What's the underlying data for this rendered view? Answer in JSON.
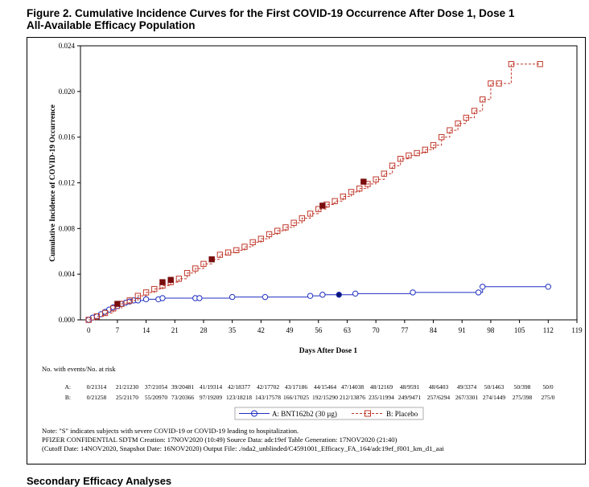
{
  "figure": {
    "title_line1": "Figure 2. Cumulative Incidence Curves for the First COVID-19 Occurrence After Dose 1, Dose 1",
    "title_line2": "All-Available Efficacy Population"
  },
  "chart_data": {
    "type": "line",
    "xlabel": "Days After Dose 1",
    "ylabel": "Cumulative Incidence of COVID-19 Occurrence",
    "xlim": [
      -2,
      119
    ],
    "ylim": [
      0,
      0.024
    ],
    "x_ticks": [
      "0",
      "7",
      "14",
      "21",
      "28",
      "35",
      "42",
      "49",
      "56",
      "63",
      "70",
      "77",
      "84",
      "91",
      "98",
      "105",
      "112",
      "119"
    ],
    "y_ticks": [
      "0.000",
      "0.004",
      "0.008",
      "0.012",
      "0.016",
      "0.020",
      "0.024"
    ],
    "series": [
      {
        "name": "A: BNT162b2 (30 µg)",
        "color": "#1f2fbf",
        "marker": "circle",
        "line_style": "solid",
        "points": [
          [
            0,
            0
          ],
          [
            1,
            0.0002
          ],
          [
            2,
            0.0003
          ],
          [
            3,
            0.0005
          ],
          [
            4,
            0.0007
          ],
          [
            5,
            0.0009
          ],
          [
            6,
            0.0011
          ],
          [
            7,
            0.0012
          ],
          [
            8,
            0.0014
          ],
          [
            9,
            0.0015
          ],
          [
            10,
            0.0016
          ],
          [
            11,
            0.0017
          ],
          [
            12,
            0.0017
          ],
          [
            14,
            0.0018
          ],
          [
            17,
            0.0018
          ],
          [
            18,
            0.0019
          ],
          [
            26,
            0.0019
          ],
          [
            27,
            0.0019
          ],
          [
            35,
            0.002
          ],
          [
            43,
            0.002
          ],
          [
            54,
            0.0021
          ],
          [
            57,
            0.0022
          ],
          [
            61,
            0.0022
          ],
          [
            65,
            0.0023
          ],
          [
            79,
            0.0024
          ],
          [
            95,
            0.0024
          ],
          [
            96,
            0.0029
          ],
          [
            112,
            0.0029
          ]
        ],
        "severe_points": [
          [
            61,
            0.0022
          ]
        ]
      },
      {
        "name": "B: Placebo",
        "color": "#c0392b",
        "marker": "square",
        "line_style": "dashed",
        "points": [
          [
            0,
            0
          ],
          [
            2,
            0.0003
          ],
          [
            4,
            0.0006
          ],
          [
            6,
            0.001
          ],
          [
            8,
            0.0014
          ],
          [
            10,
            0.0017
          ],
          [
            12,
            0.0021
          ],
          [
            14,
            0.0024
          ],
          [
            16,
            0.0027
          ],
          [
            18,
            0.003
          ],
          [
            20,
            0.0033
          ],
          [
            22,
            0.0036
          ],
          [
            24,
            0.0041
          ],
          [
            26,
            0.0045
          ],
          [
            28,
            0.0049
          ],
          [
            30,
            0.0053
          ],
          [
            32,
            0.0057
          ],
          [
            34,
            0.0059
          ],
          [
            36,
            0.0061
          ],
          [
            38,
            0.0064
          ],
          [
            40,
            0.0068
          ],
          [
            42,
            0.0071
          ],
          [
            44,
            0.0075
          ],
          [
            46,
            0.0078
          ],
          [
            48,
            0.0081
          ],
          [
            50,
            0.0085
          ],
          [
            52,
            0.0089
          ],
          [
            54,
            0.0093
          ],
          [
            56,
            0.0097
          ],
          [
            58,
            0.0101
          ],
          [
            60,
            0.0104
          ],
          [
            62,
            0.0108
          ],
          [
            64,
            0.0112
          ],
          [
            66,
            0.0115
          ],
          [
            68,
            0.0119
          ],
          [
            70,
            0.0123
          ],
          [
            72,
            0.0128
          ],
          [
            74,
            0.0135
          ],
          [
            76,
            0.0141
          ],
          [
            78,
            0.0144
          ],
          [
            80,
            0.0146
          ],
          [
            82,
            0.0149
          ],
          [
            84,
            0.0153
          ],
          [
            86,
            0.016
          ],
          [
            88,
            0.0166
          ],
          [
            90,
            0.0172
          ],
          [
            92,
            0.0177
          ],
          [
            94,
            0.0183
          ],
          [
            96,
            0.0193
          ],
          [
            98,
            0.0207
          ],
          [
            100,
            0.0207
          ],
          [
            103,
            0.0224
          ],
          [
            110,
            0.0224
          ]
        ],
        "severe_points": [
          [
            7,
            0.0014
          ],
          [
            18,
            0.0033
          ],
          [
            20,
            0.0035
          ],
          [
            30,
            0.0053
          ],
          [
            57,
            0.01
          ],
          [
            67,
            0.0121
          ]
        ]
      }
    ],
    "legend_position": "bottom"
  },
  "risk_table": {
    "header": "No. with events/No. at risk",
    "rows": [
      {
        "label": "A:",
        "values": [
          "0/21314",
          "21/21230",
          "37/21054",
          "39/20481",
          "41/19314",
          "42/18377",
          "42/17702",
          "43/17186",
          "44/15464",
          "47/14038",
          "48/12169",
          "48/9591",
          "48/6403",
          "49/3374",
          "50/1463",
          "50/398",
          "50/0"
        ]
      },
      {
        "label": "B:",
        "values": [
          "0/21258",
          "25/21170",
          "55/20970",
          "73/20366",
          "97/19209",
          "123/18218",
          "143/17578",
          "166/17025",
          "192/15290",
          "212/13876",
          "235/11994",
          "249/9471",
          "257/6294",
          "267/3301",
          "274/1449",
          "275/398",
          "275/0"
        ]
      }
    ]
  },
  "legend": {
    "a_label": "A: BNT162b2 (30 µg)",
    "b_label": "B: Placebo"
  },
  "notes": {
    "line1": "Note: \"S\" indicates subjects with severe COVID-19 or COVID-19 leading to hospitalization.",
    "line2": "PFIZER CONFIDENTIAL  SDTM Creation: 17NOV2020 (10:49)  Source Data: adc19ef  Table Generation: 17NOV2020 (21:40)",
    "line3": "(Cutoff Date: 14NOV2020, Snapshot Date: 16NOV2020) Output File: ./nda2_unblinded/C4591001_Efficacy_FA_164/adc19ef_f001_km_d1_aai"
  },
  "next_section": "Secondary Efficacy Analyses"
}
